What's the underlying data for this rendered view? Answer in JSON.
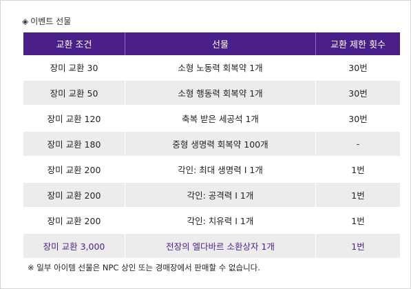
{
  "section": {
    "icon": "diamond-icon",
    "title": "이벤트 선물"
  },
  "table": {
    "headers": [
      "교환 조건",
      "선물",
      "교환 제한 횟수"
    ],
    "rows": [
      {
        "condition": "장미 교환 30",
        "reward": "소형 노동력 회복약 1개",
        "limit": "30번"
      },
      {
        "condition": "장미 교환 50",
        "reward": "소형 행동력 회복약 1개",
        "limit": "30번"
      },
      {
        "condition": "장미 교환 120",
        "reward": "축복 받은 세공석 1개",
        "limit": "30번"
      },
      {
        "condition": "장미 교환 180",
        "reward": "중형 생명력 회복약 100개",
        "limit": "-"
      },
      {
        "condition": "장미 교환 200",
        "reward": "각인: 최대 생명력 Ⅰ 1개",
        "limit": "1번"
      },
      {
        "condition": "장미 교환 200",
        "reward": "각인: 공격력 Ⅰ 1개",
        "limit": "1번"
      },
      {
        "condition": "장미 교환 200",
        "reward": "각인: 치유력 Ⅰ 1개",
        "limit": "1번"
      },
      {
        "condition": "장미 교환 3,000",
        "reward": "전장의 엘다바르 소환상자 1개",
        "limit": "1번"
      }
    ]
  },
  "footnote": "※ 일부 아이템 선물은 NPC 상인 또는 경매장에서 판매할 수 없습니다.",
  "colors": {
    "header_bg": "#4b1f8a",
    "highlight_text": "#4b1f8a",
    "stripe_bg": "#ececec"
  }
}
